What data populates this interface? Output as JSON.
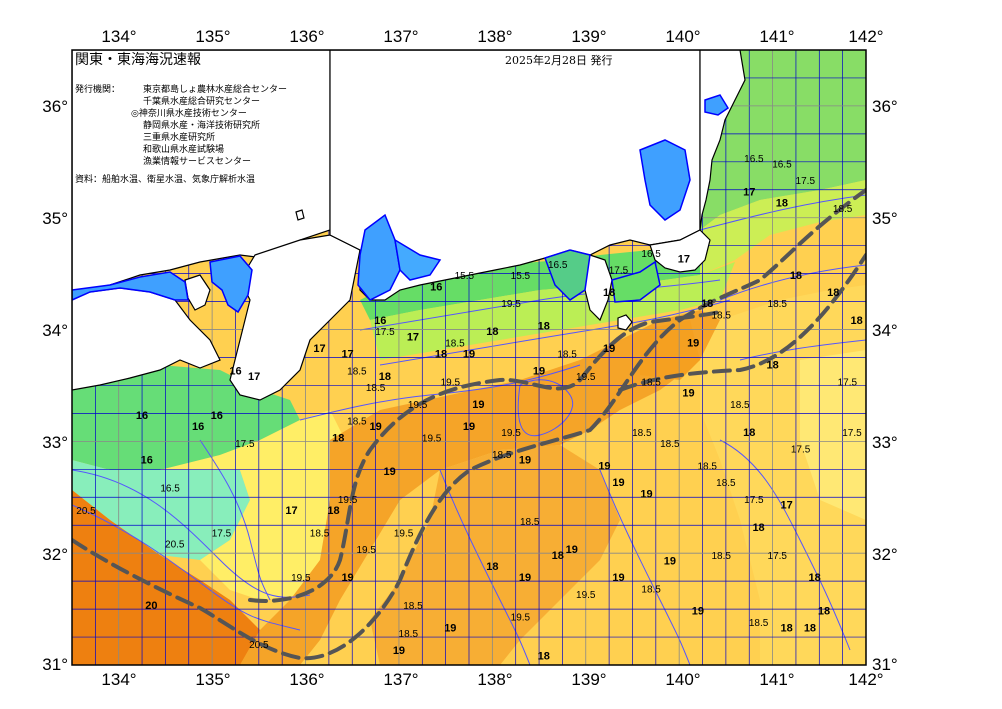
{
  "title": "関東・東海海況速報",
  "issue_date": "2025年2月28日 発行",
  "issuer_heading": "発行機関：",
  "issuers": [
    "東京都島しょ農林水産総合センター",
    "千葉県水産総合研究センター",
    "◎神奈川県水産技術センター",
    "静岡県水産・海洋技術研究所",
    "三重県水産研究所",
    "和歌山県水産試験場",
    "漁業情報サービスセンター"
  ],
  "source_note": "資料：船舶水温、衛星水温、気象庁解析水温",
  "lon_ticks": [
    "134°",
    "135°",
    "136°",
    "137°",
    "138°",
    "139°",
    "140°",
    "141°",
    "142°"
  ],
  "lat_ticks": [
    "36°",
    "35°",
    "34°",
    "33°",
    "32°",
    "31°"
  ],
  "lon_range": [
    133.5,
    142
  ],
  "lat_range": [
    31,
    36.5
  ],
  "colors": {
    "land": "#ffffff",
    "coast": "#000000",
    "grid": "#0000cc",
    "isotherm": "#5555ff",
    "current_axis": "#555555",
    "bay_cold": "#3fa0ff",
    "band_green": "#66dd66",
    "band_yellowgreen": "#ccee55",
    "band_yellow": "#ffee66",
    "band_lightorange": "#ffcc44",
    "band_orange": "#f5a020",
    "band_deeporange": "#ee8010"
  },
  "contour_labels": [
    {
      "text": "16.5",
      "lon": 140.8,
      "lat": 35.5
    },
    {
      "text": "16.5",
      "lon": 141.1,
      "lat": 35.45
    },
    {
      "text": "17.5",
      "lon": 141.35,
      "lat": 35.3
    },
    {
      "text": "18.5",
      "lon": 141.75,
      "lat": 35.05
    },
    {
      "text": "18",
      "lon": 141.1,
      "lat": 35.1
    },
    {
      "text": "17",
      "lon": 140.75,
      "lat": 35.2
    },
    {
      "text": "17",
      "lon": 140.05,
      "lat": 34.6
    },
    {
      "text": "16.5",
      "lon": 139.7,
      "lat": 34.65
    },
    {
      "text": "17.5",
      "lon": 139.35,
      "lat": 34.5
    },
    {
      "text": "15.5",
      "lon": 138.3,
      "lat": 34.45
    },
    {
      "text": "16.5",
      "lon": 138.7,
      "lat": 34.55
    },
    {
      "text": "19.5",
      "lon": 138.2,
      "lat": 34.2
    },
    {
      "text": "18",
      "lon": 138.55,
      "lat": 34.0
    },
    {
      "text": "18",
      "lon": 139.25,
      "lat": 34.3
    },
    {
      "text": "18",
      "lon": 140.3,
      "lat": 34.2
    },
    {
      "text": "18.5",
      "lon": 140.45,
      "lat": 34.1
    },
    {
      "text": "18.5",
      "lon": 141.05,
      "lat": 34.2
    },
    {
      "text": "18",
      "lon": 141.25,
      "lat": 34.45
    },
    {
      "text": "18",
      "lon": 141.65,
      "lat": 34.3
    },
    {
      "text": "18",
      "lon": 141.9,
      "lat": 34.05
    },
    {
      "text": "17.5",
      "lon": 141.8,
      "lat": 33.5
    },
    {
      "text": "19",
      "lon": 140.15,
      "lat": 33.85
    },
    {
      "text": "19",
      "lon": 139.25,
      "lat": 33.8
    },
    {
      "text": "18.5",
      "lon": 138.8,
      "lat": 33.75
    },
    {
      "text": "19.5",
      "lon": 139.0,
      "lat": 33.55
    },
    {
      "text": "18.5",
      "lon": 139.7,
      "lat": 33.5
    },
    {
      "text": "19",
      "lon": 140.1,
      "lat": 33.4
    },
    {
      "text": "18",
      "lon": 141.0,
      "lat": 33.65
    },
    {
      "text": "18.5",
      "lon": 140.65,
      "lat": 33.3
    },
    {
      "text": "18",
      "lon": 140.75,
      "lat": 33.05
    },
    {
      "text": "17.5",
      "lon": 141.3,
      "lat": 32.9
    },
    {
      "text": "17.5",
      "lon": 141.85,
      "lat": 33.05
    },
    {
      "text": "18.5",
      "lon": 139.6,
      "lat": 33.05
    },
    {
      "text": "18.5",
      "lon": 139.9,
      "lat": 32.95
    },
    {
      "text": "18.5",
      "lon": 140.3,
      "lat": 32.75
    },
    {
      "text": "18.5",
      "lon": 140.5,
      "lat": 32.6
    },
    {
      "text": "19",
      "lon": 139.2,
      "lat": 32.75
    },
    {
      "text": "19",
      "lon": 139.35,
      "lat": 32.6
    },
    {
      "text": "19",
      "lon": 139.65,
      "lat": 32.5
    },
    {
      "text": "17.5",
      "lon": 140.8,
      "lat": 32.45
    },
    {
      "text": "18",
      "lon": 140.85,
      "lat": 32.2
    },
    {
      "text": "17",
      "lon": 141.15,
      "lat": 32.4
    },
    {
      "text": "17.5",
      "lon": 141.05,
      "lat": 31.95
    },
    {
      "text": "18.5",
      "lon": 140.45,
      "lat": 31.95
    },
    {
      "text": "19",
      "lon": 139.9,
      "lat": 31.9
    },
    {
      "text": "18.5",
      "lon": 139.7,
      "lat": 31.65
    },
    {
      "text": "18",
      "lon": 141.45,
      "lat": 31.75
    },
    {
      "text": "19",
      "lon": 140.2,
      "lat": 31.45
    },
    {
      "text": "18.5",
      "lon": 140.85,
      "lat": 31.35
    },
    {
      "text": "18",
      "lon": 141.15,
      "lat": 31.3
    },
    {
      "text": "18",
      "lon": 141.4,
      "lat": 31.3
    },
    {
      "text": "18",
      "lon": 141.55,
      "lat": 31.45
    },
    {
      "text": "19",
      "lon": 138.5,
      "lat": 33.6
    },
    {
      "text": "19",
      "lon": 137.85,
      "lat": 33.3
    },
    {
      "text": "19",
      "lon": 137.75,
      "lat": 33.1
    },
    {
      "text": "19.5",
      "lon": 138.2,
      "lat": 33.05
    },
    {
      "text": "19",
      "lon": 138.35,
      "lat": 32.8
    },
    {
      "text": "18.5",
      "lon": 138.1,
      "lat": 32.85
    },
    {
      "text": "18.5",
      "lon": 138.4,
      "lat": 32.25
    },
    {
      "text": "19",
      "lon": 138.85,
      "lat": 32.0
    },
    {
      "text": "19",
      "lon": 139.35,
      "lat": 31.75
    },
    {
      "text": "18",
      "lon": 138.7,
      "lat": 31.95
    },
    {
      "text": "19.5",
      "lon": 139.0,
      "lat": 31.6
    },
    {
      "text": "19",
      "lon": 138.35,
      "lat": 31.75
    },
    {
      "text": "19.5",
      "lon": 138.3,
      "lat": 31.4
    },
    {
      "text": "18",
      "lon": 138.0,
      "lat": 31.85
    },
    {
      "text": "18",
      "lon": 138.55,
      "lat": 31.05
    },
    {
      "text": "18.5",
      "lon": 137.15,
      "lat": 31.5
    },
    {
      "text": "18.5",
      "lon": 137.1,
      "lat": 31.25
    },
    {
      "text": "19",
      "lon": 137.55,
      "lat": 31.3
    },
    {
      "text": "19",
      "lon": 137.0,
      "lat": 31.1
    },
    {
      "text": "19.5",
      "lon": 137.05,
      "lat": 32.15
    },
    {
      "text": "19.5",
      "lon": 136.65,
      "lat": 32.0
    },
    {
      "text": "19.5",
      "lon": 136.45,
      "lat": 32.45
    },
    {
      "text": "19",
      "lon": 136.9,
      "lat": 32.7
    },
    {
      "text": "19.5",
      "lon": 137.35,
      "lat": 33.0
    },
    {
      "text": "19.5",
      "lon": 137.2,
      "lat": 33.3
    },
    {
      "text": "19.5",
      "lon": 137.55,
      "lat": 33.5
    },
    {
      "text": "19",
      "lon": 136.75,
      "lat": 33.1
    },
    {
      "text": "18",
      "lon": 136.35,
      "lat": 33.0
    },
    {
      "text": "18.5",
      "lon": 136.75,
      "lat": 33.45
    },
    {
      "text": "18.5",
      "lon": 136.55,
      "lat": 33.6
    },
    {
      "text": "18",
      "lon": 136.85,
      "lat": 33.55
    },
    {
      "text": "18",
      "lon": 137.45,
      "lat": 33.75
    },
    {
      "text": "18.5",
      "lon": 137.6,
      "lat": 33.85
    },
    {
      "text": "19",
      "lon": 137.75,
      "lat": 33.75
    },
    {
      "text": "17.5",
      "lon": 136.85,
      "lat": 33.95
    },
    {
      "text": "17",
      "lon": 136.45,
      "lat": 33.75
    },
    {
      "text": "16",
      "lon": 136.8,
      "lat": 34.05
    },
    {
      "text": "16",
      "lon": 137.4,
      "lat": 34.35
    },
    {
      "text": "15.5",
      "lon": 137.7,
      "lat": 34.45
    },
    {
      "text": "18",
      "lon": 138.0,
      "lat": 33.95
    },
    {
      "text": "17",
      "lon": 137.15,
      "lat": 33.9
    },
    {
      "text": "18.5",
      "lon": 136.55,
      "lat": 33.15
    },
    {
      "text": "18",
      "lon": 136.3,
      "lat": 32.35
    },
    {
      "text": "18.5",
      "lon": 136.15,
      "lat": 32.15
    },
    {
      "text": "19",
      "lon": 136.45,
      "lat": 31.75
    },
    {
      "text": "19.5",
      "lon": 135.95,
      "lat": 31.75
    },
    {
      "text": "20.5",
      "lon": 134.6,
      "lat": 32.05
    },
    {
      "text": "20.5",
      "lon": 135.5,
      "lat": 31.15
    },
    {
      "text": "20",
      "lon": 134.35,
      "lat": 31.5
    },
    {
      "text": "20.5",
      "lon": 133.65,
      "lat": 32.35
    },
    {
      "text": "17.5",
      "lon": 135.35,
      "lat": 32.95
    },
    {
      "text": "17",
      "lon": 135.85,
      "lat": 32.35
    },
    {
      "text": "17.5",
      "lon": 135.1,
      "lat": 32.15
    },
    {
      "text": "16.5",
      "lon": 134.55,
      "lat": 32.55
    },
    {
      "text": "16",
      "lon": 134.85,
      "lat": 33.1
    },
    {
      "text": "16",
      "lon": 134.25,
      "lat": 33.2
    },
    {
      "text": "16",
      "lon": 135.05,
      "lat": 33.2
    },
    {
      "text": "17",
      "lon": 135.45,
      "lat": 33.55
    },
    {
      "text": "16",
      "lon": 135.25,
      "lat": 33.6
    },
    {
      "text": "16",
      "lon": 134.3,
      "lat": 32.8
    },
    {
      "text": "17",
      "lon": 136.15,
      "lat": 33.8
    }
  ]
}
